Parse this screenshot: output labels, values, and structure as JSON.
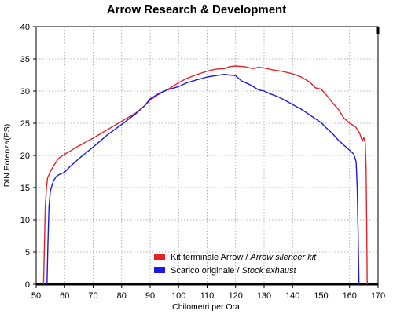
{
  "chart_data": {
    "type": "line",
    "title": "Arrow Research & Development",
    "xlabel": "Chilometri per Ora",
    "ylabel": "DIN Potenza(PS)",
    "xlim": [
      50,
      170
    ],
    "ylim": [
      0,
      40
    ],
    "xticks": [
      50,
      60,
      70,
      80,
      90,
      100,
      110,
      120,
      130,
      140,
      150,
      160,
      170
    ],
    "yticks": [
      0,
      5,
      10,
      15,
      20,
      25,
      30,
      35,
      40
    ],
    "grid": true,
    "legend_position": "bottom-right",
    "series": [
      {
        "name_main": "Kit terminale Arrow / ",
        "name_italic": "Arrow silencer kit",
        "color": "#e8202a",
        "points": [
          [
            52.6,
            0
          ],
          [
            52.9,
            6
          ],
          [
            53.2,
            12
          ],
          [
            53.6,
            15
          ],
          [
            54.0,
            16.5
          ],
          [
            55.0,
            17.5
          ],
          [
            56.0,
            18.3
          ],
          [
            57.0,
            19.0
          ],
          [
            58.0,
            19.6
          ],
          [
            60.0,
            20.2
          ],
          [
            62.0,
            20.7
          ],
          [
            65.0,
            21.5
          ],
          [
            70.0,
            22.7
          ],
          [
            75.0,
            24.0
          ],
          [
            80.0,
            25.3
          ],
          [
            85.0,
            26.6
          ],
          [
            88.0,
            27.7
          ],
          [
            90.0,
            28.6
          ],
          [
            93.0,
            29.5
          ],
          [
            96.0,
            30.2
          ],
          [
            100.0,
            31.3
          ],
          [
            103.0,
            32.0
          ],
          [
            106.0,
            32.5
          ],
          [
            110.0,
            33.1
          ],
          [
            113.0,
            33.4
          ],
          [
            116.0,
            33.5
          ],
          [
            118.0,
            33.8
          ],
          [
            120.0,
            33.9
          ],
          [
            123.0,
            33.8
          ],
          [
            126.0,
            33.5
          ],
          [
            128.0,
            33.7
          ],
          [
            130.0,
            33.6
          ],
          [
            133.0,
            33.3
          ],
          [
            136.0,
            33.1
          ],
          [
            140.0,
            32.7
          ],
          [
            143.0,
            32.2
          ],
          [
            146.0,
            31.4
          ],
          [
            148.0,
            30.5
          ],
          [
            150.0,
            30.3
          ],
          [
            152.0,
            29.3
          ],
          [
            154.0,
            28.2
          ],
          [
            156.0,
            27.2
          ],
          [
            158.0,
            25.8
          ],
          [
            160.0,
            25.0
          ],
          [
            162.0,
            24.5
          ],
          [
            163.5,
            23.5
          ],
          [
            164.5,
            22.2
          ],
          [
            165.0,
            22.8
          ],
          [
            165.5,
            22.0
          ],
          [
            165.8,
            18.0
          ],
          [
            166.0,
            10.0
          ],
          [
            166.2,
            0
          ]
        ]
      },
      {
        "name_main": "Scarico originale / ",
        "name_italic": "Stock exhaust",
        "color": "#1a1ae0",
        "points": [
          [
            53.8,
            0
          ],
          [
            54.1,
            6
          ],
          [
            54.5,
            12
          ],
          [
            55.0,
            14.5
          ],
          [
            56.0,
            16.0
          ],
          [
            57.0,
            16.7
          ],
          [
            58.0,
            17.0
          ],
          [
            60.0,
            17.4
          ],
          [
            62.0,
            18.3
          ],
          [
            65.0,
            19.5
          ],
          [
            70.0,
            21.3
          ],
          [
            75.0,
            23.2
          ],
          [
            80.0,
            24.8
          ],
          [
            85.0,
            26.5
          ],
          [
            88.0,
            27.7
          ],
          [
            90.0,
            28.8
          ],
          [
            93.0,
            29.6
          ],
          [
            96.0,
            30.2
          ],
          [
            100.0,
            30.7
          ],
          [
            103.0,
            31.3
          ],
          [
            106.0,
            31.7
          ],
          [
            110.0,
            32.2
          ],
          [
            113.0,
            32.4
          ],
          [
            116.0,
            32.6
          ],
          [
            118.0,
            32.5
          ],
          [
            120.0,
            32.4
          ],
          [
            122.0,
            31.6
          ],
          [
            125.0,
            31.0
          ],
          [
            128.0,
            30.2
          ],
          [
            130.0,
            30.0
          ],
          [
            132.0,
            29.6
          ],
          [
            135.0,
            29.1
          ],
          [
            138.0,
            28.4
          ],
          [
            140.0,
            27.9
          ],
          [
            143.0,
            27.2
          ],
          [
            146.0,
            26.3
          ],
          [
            148.0,
            25.7
          ],
          [
            150.0,
            25.1
          ],
          [
            152.0,
            24.2
          ],
          [
            154.0,
            23.4
          ],
          [
            156.0,
            22.4
          ],
          [
            158.0,
            21.6
          ],
          [
            160.0,
            20.8
          ],
          [
            161.5,
            20.2
          ],
          [
            162.3,
            19.0
          ],
          [
            162.7,
            15.0
          ],
          [
            163.0,
            8.0
          ],
          [
            163.3,
            0
          ]
        ]
      }
    ]
  }
}
